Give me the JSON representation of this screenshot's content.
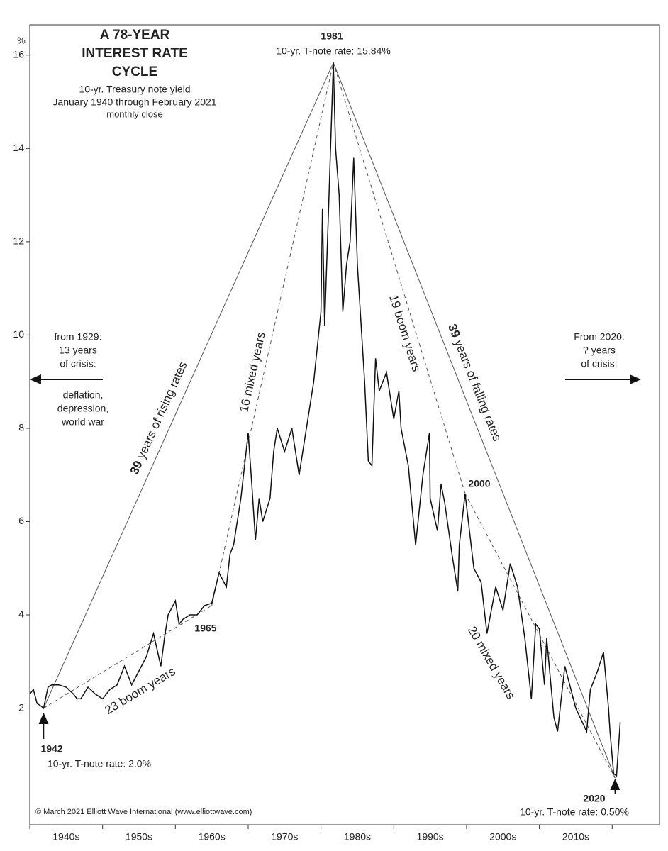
{
  "chart_data": {
    "type": "line",
    "title_lines": [
      "A 78-YEAR",
      "INTEREST RATE",
      "CYCLE"
    ],
    "subtitle_lines": [
      "10-yr. Treasury note yield",
      "January 1940 through February 2021",
      "monthly close"
    ],
    "y_unit": "%",
    "color": "#111111",
    "x": [
      1940,
      1940.5,
      1941,
      1941.5,
      1941.9,
      1942.5,
      1943,
      1944,
      1945,
      1946,
      1946.5,
      1947,
      1948,
      1949,
      1950,
      1951,
      1952,
      1953,
      1954,
      1955,
      1956,
      1957,
      1958,
      1958.5,
      1959,
      1960,
      1960.5,
      1961,
      1962,
      1963,
      1964,
      1965,
      1966,
      1967,
      1967.5,
      1968,
      1969,
      1970,
      1970.5,
      1971,
      1971.5,
      1972,
      1973,
      1973.5,
      1974,
      1975,
      1976,
      1977,
      1978,
      1979,
      1980,
      1980.2,
      1980.5,
      1981,
      1981.7,
      1982,
      1982.5,
      1983,
      1983.5,
      1984,
      1984.5,
      1985,
      1986,
      1986.5,
      1987,
      1987.5,
      1988,
      1989,
      1990,
      1990.7,
      1991,
      1992,
      1993,
      1994,
      1994.9,
      1995,
      1996,
      1996.5,
      1997,
      1998,
      1998.8,
      1999,
      1999.8,
      2001,
      2002,
      2002.8,
      2004,
      2005,
      2006,
      2007,
      2008,
      2008.9,
      2009.5,
      2010,
      2010.7,
      2011,
      2012,
      2012.5,
      2013.5,
      2014,
      2015,
      2016.5,
      2017,
      2018,
      2018.8,
      2019.5,
      2019.7,
      2020.2,
      2020.6,
      2021.1
    ],
    "values": [
      2.3,
      2.4,
      2.1,
      2.05,
      2.0,
      2.45,
      2.5,
      2.5,
      2.45,
      2.3,
      2.2,
      2.2,
      2.45,
      2.3,
      2.2,
      2.4,
      2.5,
      2.9,
      2.5,
      2.8,
      3.1,
      3.6,
      2.9,
      3.5,
      4.0,
      4.3,
      3.8,
      3.9,
      4.0,
      4.0,
      4.2,
      4.25,
      4.9,
      4.6,
      5.3,
      5.5,
      6.5,
      7.9,
      6.8,
      5.6,
      6.5,
      6.0,
      6.5,
      7.5,
      8.0,
      7.5,
      8.0,
      7.0,
      8.0,
      9.0,
      10.5,
      12.7,
      10.2,
      12.5,
      15.84,
      14.0,
      13.0,
      10.5,
      11.5,
      12.0,
      13.8,
      11.5,
      9.0,
      7.3,
      7.2,
      9.5,
      8.8,
      9.2,
      8.2,
      8.8,
      8.0,
      7.2,
      5.5,
      7.0,
      7.9,
      6.5,
      5.8,
      6.8,
      6.4,
      5.3,
      4.5,
      5.5,
      6.6,
      5.0,
      4.7,
      3.6,
      4.6,
      4.1,
      5.1,
      4.6,
      3.5,
      2.2,
      3.8,
      3.7,
      2.5,
      3.5,
      1.8,
      1.5,
      2.9,
      2.6,
      2.0,
      1.5,
      2.4,
      2.8,
      3.2,
      2.0,
      1.5,
      0.6,
      0.55,
      1.7
    ],
    "xlim": [
      1940,
      2026.5
    ],
    "ylim": [
      -0.5,
      16.65
    ],
    "yticks": [
      2,
      4,
      6,
      8,
      10,
      12,
      14,
      16
    ],
    "xticks": [
      1940,
      1950,
      1960,
      1970,
      1980,
      1990,
      2000,
      2010,
      2020
    ],
    "decade_labels": [
      "1940s",
      "1950s",
      "1960s",
      "1970s",
      "1980s",
      "1990s",
      "2000s",
      "2010s"
    ],
    "pivots": [
      {
        "year": 1941.9,
        "value": 2.0,
        "label": "1942",
        "note": "10-yr. T-note rate: 2.0%"
      },
      {
        "year": 1965,
        "value": 4.2,
        "label": "1965"
      },
      {
        "year": 1981.7,
        "value": 15.84,
        "label": "1981",
        "note": "10-yr. T-note rate: 15.84%"
      },
      {
        "year": 1999.8,
        "value": 6.6,
        "label": "2000"
      },
      {
        "year": 2020.4,
        "value": 0.5,
        "label": "2020",
        "note": "10-yr. T-note rate: 0.50%"
      }
    ],
    "rising": {
      "bold": "39",
      "text": "years of rising rates"
    },
    "falling": {
      "bold": "39",
      "text": "years of falling rates"
    },
    "phases": [
      "23 boom years",
      "16 mixed years",
      "19 boom years",
      "20 mixed years"
    ],
    "left_note": [
      "from 1929:",
      "13 years",
      "of crisis:",
      "deflation,",
      "depression,",
      "world war"
    ],
    "right_note": [
      "From 2020:",
      "? years",
      "of crisis:"
    ],
    "credit": "© March 2021 Elliott Wave International (www.elliottwave.com)"
  }
}
